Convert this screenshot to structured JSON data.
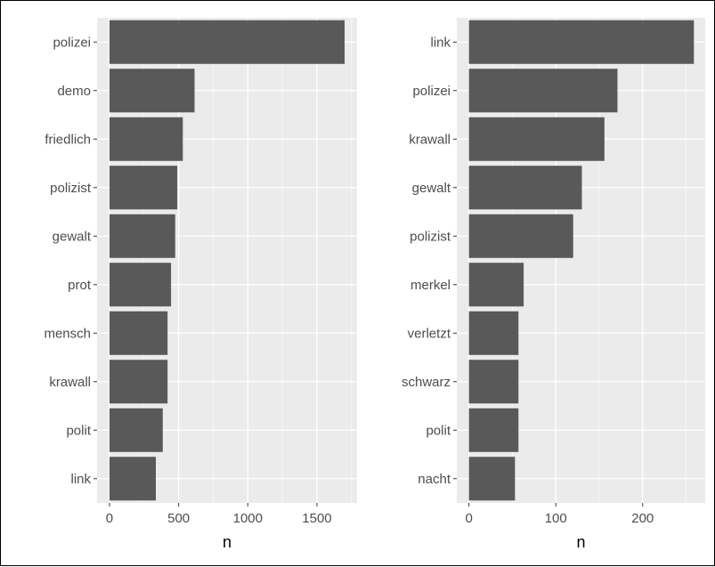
{
  "colors": {
    "panel_background": "#ebebeb",
    "grid_major": "#ffffff",
    "bar_fill": "#595959",
    "tick_label": "#4d4d4d",
    "axis_title": "#000000"
  },
  "chart_data": [
    {
      "type": "bar",
      "orientation": "horizontal",
      "title": "",
      "xlabel": "n",
      "ylabel": "",
      "categories": [
        "polizei",
        "demo",
        "friedlich",
        "polizist",
        "gewalt",
        "prot",
        "mensch",
        "krawall",
        "polit",
        "link"
      ],
      "values": [
        1700,
        615,
        530,
        490,
        475,
        445,
        420,
        420,
        385,
        335
      ],
      "xlim": [
        -90,
        1790
      ],
      "xticks": [
        0,
        500,
        1000,
        1500
      ],
      "xtick_labels": [
        "0",
        "500",
        "1000",
        "1500"
      ],
      "grid": true
    },
    {
      "type": "bar",
      "orientation": "horizontal",
      "title": "",
      "xlabel": "n",
      "ylabel": "",
      "categories": [
        "link",
        "polizei",
        "krawall",
        "gewalt",
        "polizist",
        "merkel",
        "verletzt",
        "schwarz",
        "polit",
        "nacht"
      ],
      "values": [
        259,
        171,
        156,
        130,
        120,
        63,
        57,
        57,
        57,
        53
      ],
      "xlim": [
        -14,
        272
      ],
      "xticks": [
        0,
        100,
        200
      ],
      "xtick_labels": [
        "0",
        "100",
        "200"
      ],
      "grid": true
    }
  ]
}
